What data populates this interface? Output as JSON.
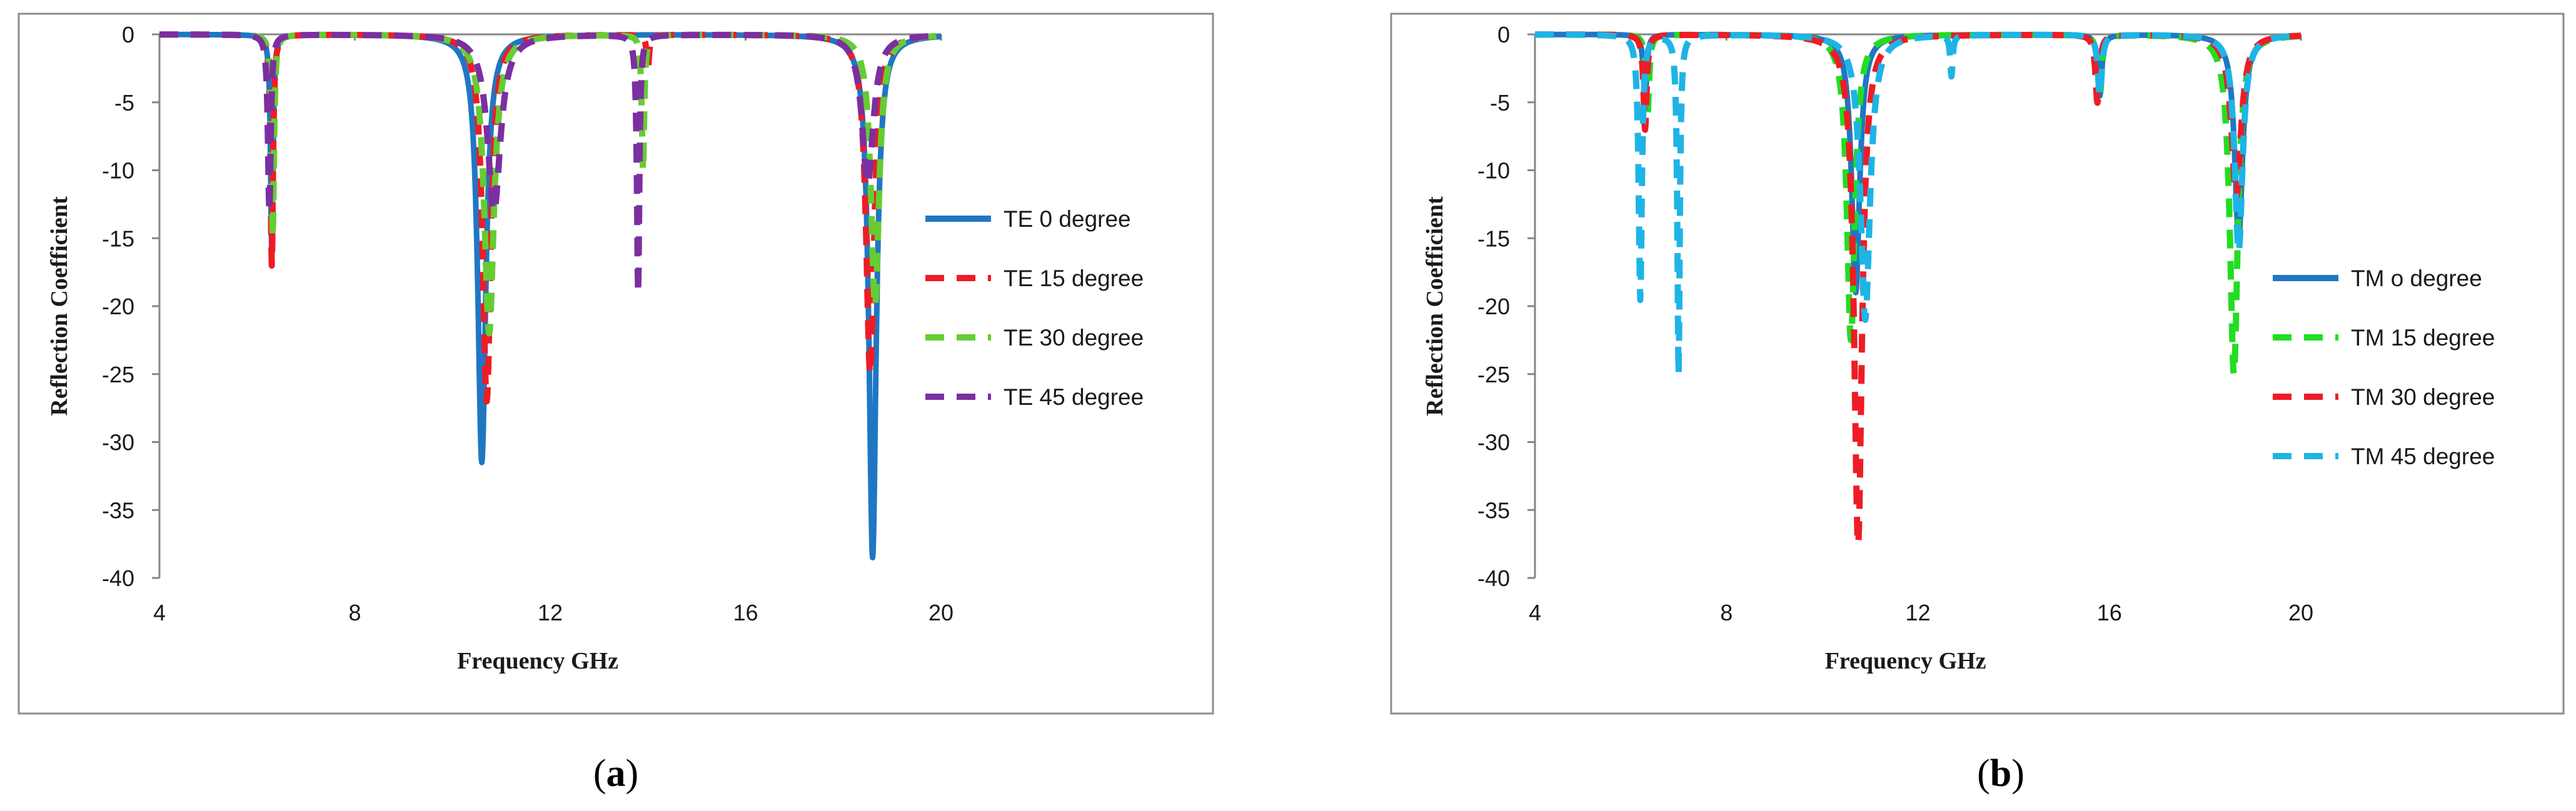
{
  "chart_data": [
    {
      "id": "a",
      "type": "line",
      "caption": {
        "open": "(",
        "letter": "a",
        "close": ")"
      },
      "xlabel": "Frequency GHz",
      "ylabel": "Reflection Coefficient",
      "xlim": [
        4,
        20
      ],
      "ylim": [
        -40,
        0
      ],
      "xticks": [
        4,
        8,
        12,
        16,
        20
      ],
      "yticks": [
        0,
        -5,
        -10,
        -15,
        -20,
        -25,
        -30,
        -35,
        -40
      ],
      "grid": false,
      "legend_position": "right",
      "series": [
        {
          "name": "TE 0 degree",
          "color": "#1f77c4",
          "dash": "solid",
          "resonances": [
            {
              "f": 6.3,
              "depth": -16,
              "w": 0.03
            },
            {
              "f": 10.6,
              "depth": -31.5,
              "w": 0.1
            },
            {
              "f": 18.6,
              "depth": -38.5,
              "w": 0.09
            }
          ]
        },
        {
          "name": "TE 15 degree",
          "color": "#ee1c25",
          "dash": "dashed",
          "resonances": [
            {
              "f": 6.3,
              "depth": -17,
              "w": 0.03
            },
            {
              "f": 10.7,
              "depth": -27,
              "w": 0.1
            },
            {
              "f": 14.0,
              "depth": -2.5,
              "w": 0.03
            },
            {
              "f": 18.55,
              "depth": -25,
              "w": 0.1
            }
          ]
        },
        {
          "name": "TE 30 degree",
          "color": "#66cc33",
          "dash": "dashed",
          "resonances": [
            {
              "f": 6.32,
              "depth": -15,
              "w": 0.03
            },
            {
              "f": 10.75,
              "depth": -22,
              "w": 0.12
            },
            {
              "f": 13.9,
              "depth": -10,
              "w": 0.03
            },
            {
              "f": 18.65,
              "depth": -20,
              "w": 0.1
            }
          ]
        },
        {
          "name": "TE 45 degree",
          "color": "#7b2fa0",
          "dash": "dashed",
          "resonances": [
            {
              "f": 6.25,
              "depth": -13,
              "w": 0.035
            },
            {
              "f": 10.85,
              "depth": -13,
              "w": 0.16
            },
            {
              "f": 13.8,
              "depth": -19,
              "w": 0.03
            },
            {
              "f": 18.5,
              "depth": -11,
              "w": 0.14
            }
          ]
        }
      ]
    },
    {
      "id": "b",
      "type": "line",
      "caption": {
        "open": "(",
        "letter": "b",
        "close": ")"
      },
      "xlabel": "Frequency GHz",
      "ylabel": "Reflection Coefficient",
      "xlim": [
        4,
        20
      ],
      "ylim": [
        -40,
        0
      ],
      "xticks": [
        4,
        8,
        12,
        16,
        20
      ],
      "yticks": [
        0,
        -5,
        -10,
        -15,
        -20,
        -25,
        -30,
        -35,
        -40
      ],
      "grid": false,
      "legend_position": "right",
      "series": [
        {
          "name": "TM o degree",
          "color": "#1f77c4",
          "dash": "solid",
          "resonances": [
            {
              "f": 6.3,
              "depth": -5,
              "w": 0.04
            },
            {
              "f": 10.7,
              "depth": -19,
              "w": 0.1
            },
            {
              "f": 15.8,
              "depth": -4.5,
              "w": 0.05
            },
            {
              "f": 18.7,
              "depth": -15,
              "w": 0.1
            }
          ]
        },
        {
          "name": "TM 15 degree",
          "color": "#22dd22",
          "dash": "dashed",
          "resonances": [
            {
              "f": 6.35,
              "depth": -6,
              "w": 0.04
            },
            {
              "f": 10.6,
              "depth": -22.5,
              "w": 0.1
            },
            {
              "f": 15.8,
              "depth": -4.5,
              "w": 0.05
            },
            {
              "f": 18.6,
              "depth": -25,
              "w": 0.1
            }
          ]
        },
        {
          "name": "TM 30 degree",
          "color": "#ee1c25",
          "dash": "dashed",
          "resonances": [
            {
              "f": 6.3,
              "depth": -7,
              "w": 0.04
            },
            {
              "f": 10.75,
              "depth": -37.5,
              "w": 0.1
            },
            {
              "f": 15.75,
              "depth": -5,
              "w": 0.05
            },
            {
              "f": 18.65,
              "depth": -12,
              "w": 0.12
            }
          ]
        },
        {
          "name": "TM 45 degree",
          "color": "#1eb4e6",
          "dash": "dashed",
          "resonances": [
            {
              "f": 6.2,
              "depth": -19.5,
              "w": 0.04
            },
            {
              "f": 7.0,
              "depth": -25,
              "w": 0.03
            },
            {
              "f": 10.9,
              "depth": -21,
              "w": 0.12
            },
            {
              "f": 12.7,
              "depth": -3,
              "w": 0.03
            },
            {
              "f": 15.8,
              "depth": -4.5,
              "w": 0.05
            },
            {
              "f": 18.7,
              "depth": -16,
              "w": 0.1
            }
          ]
        }
      ]
    }
  ]
}
